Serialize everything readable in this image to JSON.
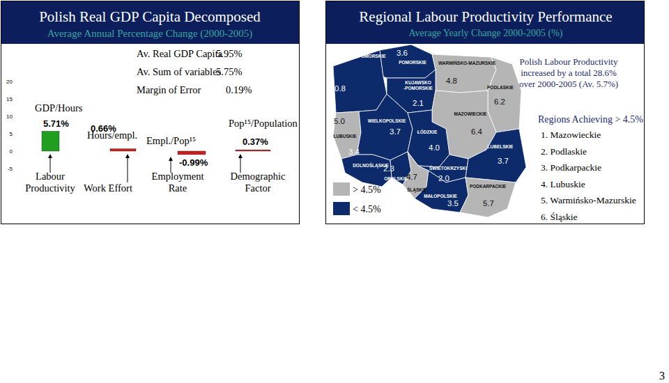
{
  "chart_data": [
    {
      "type": "bar",
      "title": "Polish Real GDP Capita Decomposed",
      "subtitle": "Average Annual Percentage Change (2000-2005)",
      "summary": [
        {
          "label": "Av. Real GDP Capita",
          "text": "5.95%"
        },
        {
          "label": "Av. Sum of variables",
          "text": "5.75%"
        },
        {
          "label": "Margin of Error",
          "text": "0.19%"
        }
      ],
      "categories": [
        "Labour Productivity",
        "Work Effort",
        "Employment Rate",
        "Demographic Factor"
      ],
      "measures": [
        "GDP/Hours",
        "Hours/empl.",
        "Empl./Pop¹⁵",
        "Pop¹⁵/Population"
      ],
      "values": [
        5.71,
        0.66,
        -0.99,
        0.37
      ],
      "value_labels": [
        "5.71%",
        "0.66%",
        "-0.99%",
        "0.37%"
      ],
      "colors": [
        "#1f9e1f",
        "#cc2020",
        "#cc2020",
        "#cc2020"
      ],
      "ylim": [
        -5,
        20
      ],
      "yticks": [
        -5,
        0,
        5,
        10,
        15,
        20
      ],
      "grid": false,
      "data_labels": true
    },
    {
      "type": "map",
      "title": "Regional Labour Productivity Performance",
      "subtitle": "Average Yearly Change 2000-2005 (%)",
      "categories": [
        "ZACHODNIOPOMORSKIE",
        "POMORSKIE",
        "WARMIŃSKO-MAZURSKIE",
        "PODLASKIE",
        "KUJAWSKO-POMORSKIE",
        "LUBUSKIE",
        "WIELKOPOLSKIE",
        "MAZOWIECKIE",
        "ŁÓDZKIE",
        "DOLNOŚLĄSKIE",
        "OPOLSKIE",
        "ŚLĄSKIE",
        "ŚWIETOKRZYSKI",
        "LUBELSKIE",
        "MAŁOPOLSKIE",
        "PODKARPACKIE"
      ],
      "values": [
        0.8,
        3.6,
        4.8,
        6.2,
        2.1,
        5.0,
        3.7,
        6.4,
        4.0,
        3.4,
        2.3,
        4.7,
        2.0,
        3.7,
        3.5,
        5.7
      ],
      "value_labels": [
        "0.8",
        "3.6",
        "4.8",
        "6.2",
        "2.1",
        "5.0",
        "3.7",
        "6.4",
        "4.0",
        "3.4",
        "2.3",
        "4.7",
        "2.0",
        "3.7",
        "3.5",
        "5.7"
      ],
      "colors": [
        "#0d2b6b",
        "#0d2b6b",
        "#b5b5b5",
        "#b5b5b5",
        "#0d2b6b",
        "#b5b5b5",
        "#0d2b6b",
        "#b5b5b5",
        "#0d2b6b",
        "#0d2b6b",
        "#0d2b6b",
        "#b5b5b5",
        "#0d2b6b",
        "#0d2b6b",
        "#0d2b6b",
        "#b5b5b5"
      ],
      "data_labels": true,
      "legend": "bottom-left",
      "legend_items": [
        {
          "label": "> 4.5%",
          "color": "#b5b5b5"
        },
        {
          "label": "< 4.5%",
          "color": "#0d2b6b"
        }
      ],
      "annotations": [
        "Polish Labour Productivity",
        "increased by a total 28.6%",
        "over 2000-2005 (Av. 5.7%)"
      ],
      "ranking_title": "Regions Achieving  > 4.5%",
      "ranking": [
        "1. Mazowieckie",
        "2. Podlaskie",
        "3. Podkarpackie",
        "4. Lubuskie",
        "5. Warmińsko-Mazurskie",
        "6. Śląskie"
      ]
    }
  ],
  "page": {
    "number": "3"
  }
}
